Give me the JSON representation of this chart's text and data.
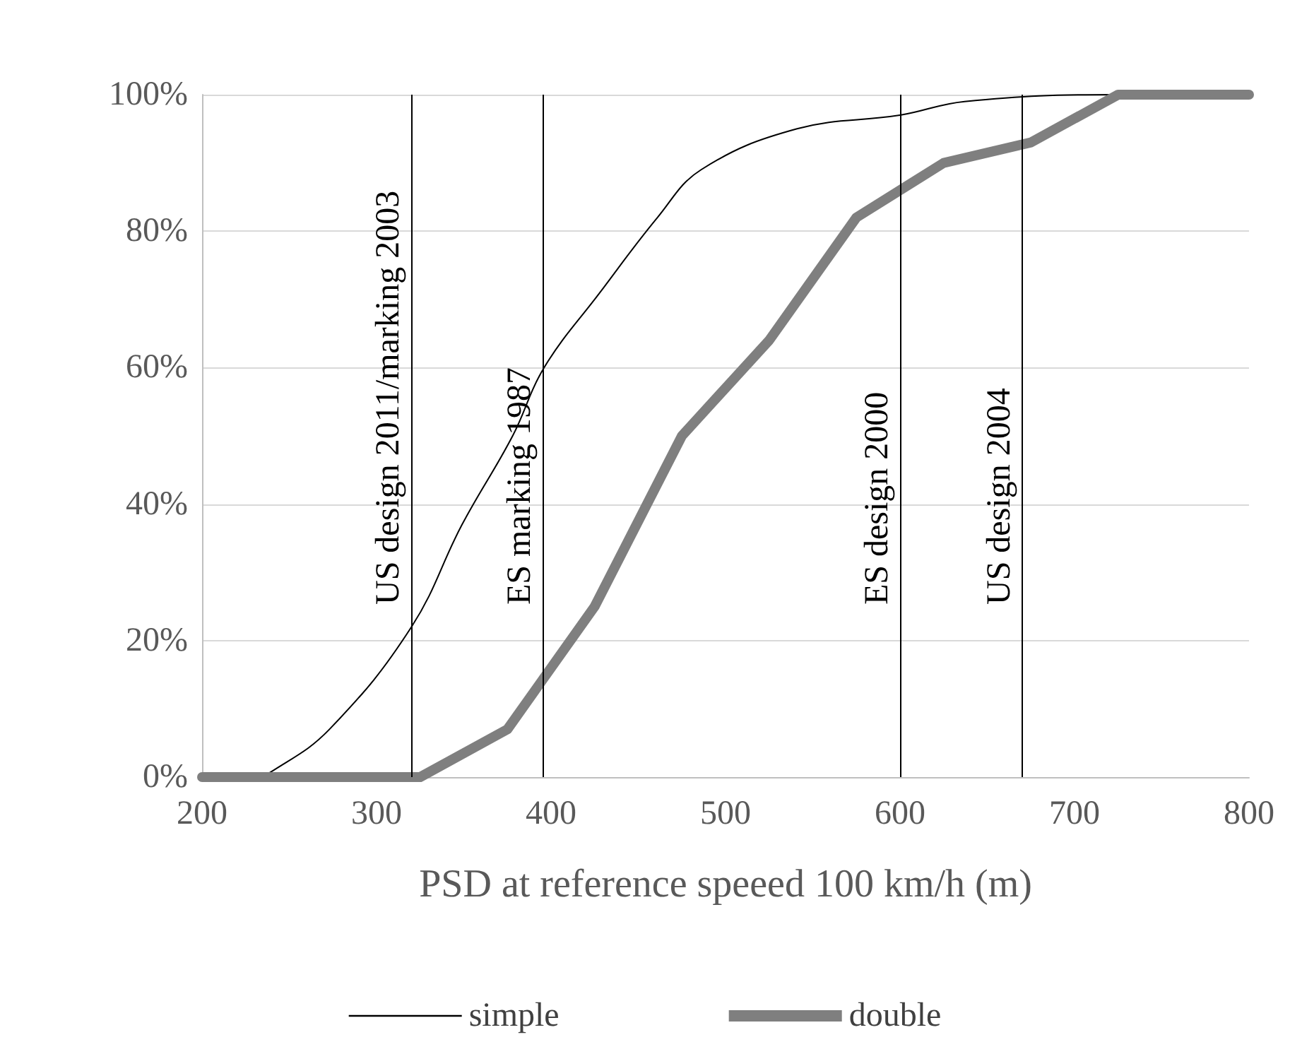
{
  "chart_data": {
    "type": "line",
    "xlabel": "PSD at reference speeed 100 km/h (m)",
    "xlim": [
      200,
      800
    ],
    "xticks": [
      200,
      300,
      400,
      500,
      600,
      700,
      800
    ],
    "ylim": [
      0,
      100
    ],
    "yticks": [
      {
        "value": 0,
        "label": "0%"
      },
      {
        "value": 20,
        "label": "20%"
      },
      {
        "value": 40,
        "label": "40%"
      },
      {
        "value": 60,
        "label": "60%"
      },
      {
        "value": 80,
        "label": "80%"
      },
      {
        "value": 100,
        "label": "100%"
      }
    ],
    "grid": "y",
    "legend": "bottom",
    "marker": "none",
    "line_style": "solid",
    "series": [
      {
        "name": "simple",
        "color": "#000000",
        "x": [
          200,
          230,
          241,
          273,
          320,
          349,
          378,
          396,
          428,
          461,
          486,
          541,
          600,
          637,
          723,
          800
        ],
        "values": [
          0,
          0,
          1,
          7,
          22,
          37,
          50,
          60,
          71,
          82,
          89,
          95,
          97,
          99,
          100,
          100
        ]
      },
      {
        "name": "double",
        "color": "#7f7f7f",
        "x": [
          200,
          325,
          375,
          425,
          475,
          525,
          575,
          625,
          675,
          725,
          800
        ],
        "values": [
          0,
          0,
          7,
          25,
          50,
          64,
          82,
          90,
          93,
          100,
          100
        ]
      }
    ],
    "ref_lines": [
      {
        "axis": "x",
        "value": 320,
        "label": "US design 2011/marking 2003"
      },
      {
        "axis": "x",
        "value": 395,
        "label": "ES marking 1987"
      },
      {
        "axis": "x",
        "value": 600,
        "label": "ES design 2000"
      },
      {
        "axis": "x",
        "value": 670,
        "label": "US design 2004"
      }
    ]
  }
}
